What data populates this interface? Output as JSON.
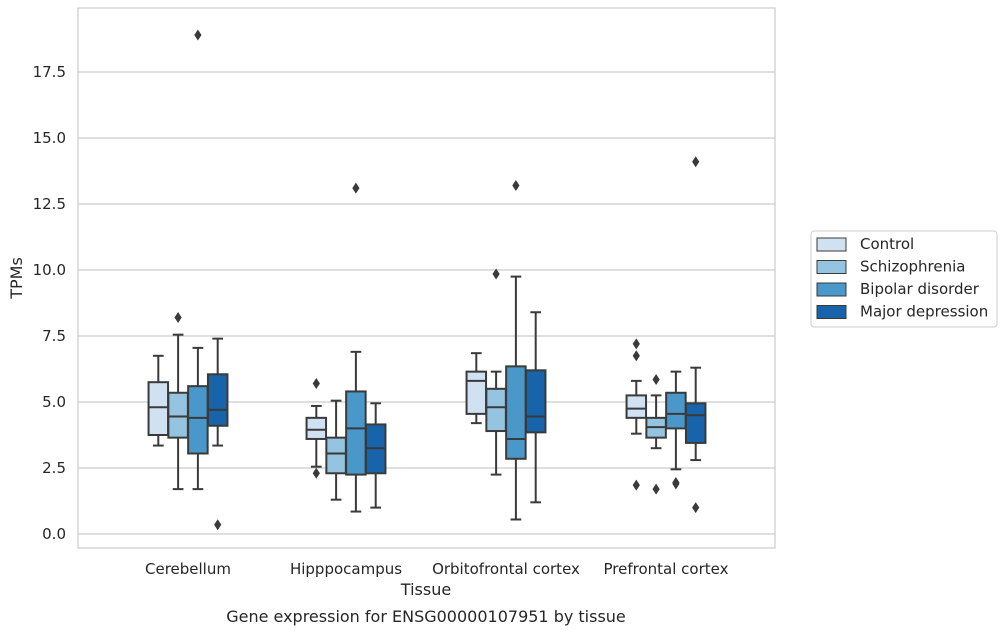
{
  "chart_data": {
    "type": "boxplot",
    "title": "Gene expression for ENSG00000107951 by tissue",
    "xlabel": "Tissue",
    "ylabel": "TPMs",
    "ylim": [
      -0.5,
      19.8
    ],
    "yticks": [
      "0.0",
      "2.5",
      "5.0",
      "7.5",
      "10.0",
      "12.5",
      "15.0",
      "17.5"
    ],
    "ytick_values": [
      0,
      2.5,
      5,
      7.5,
      10,
      12.5,
      15,
      17.5
    ],
    "grid": true,
    "legend_placement": "right",
    "categories": [
      "Cerebellum",
      "Hipppocampus",
      "Orbitofrontal cortex",
      "Prefrontal cortex"
    ],
    "series": [
      {
        "name": "Control",
        "color": "#d0e1f2",
        "boxes": [
          {
            "whislo": 3.35,
            "q1": 3.75,
            "med": 4.8,
            "q3": 5.75,
            "whishi": 6.75,
            "fliers": []
          },
          {
            "whislo": 2.55,
            "q1": 3.6,
            "med": 3.95,
            "q3": 4.4,
            "whishi": 4.85,
            "fliers": [
              5.7,
              2.3
            ]
          },
          {
            "whislo": 4.2,
            "q1": 4.55,
            "med": 5.8,
            "q3": 6.15,
            "whishi": 6.85,
            "fliers": []
          },
          {
            "whislo": 3.8,
            "q1": 4.4,
            "med": 4.75,
            "q3": 5.25,
            "whishi": 5.8,
            "fliers": [
              7.2,
              6.75,
              1.85
            ]
          }
        ]
      },
      {
        "name": "Schizophrenia",
        "color": "#94c4df",
        "boxes": [
          {
            "whislo": 1.7,
            "q1": 3.65,
            "med": 4.45,
            "q3": 5.35,
            "whishi": 7.55,
            "fliers": [
              8.2
            ]
          },
          {
            "whislo": 1.3,
            "q1": 2.3,
            "med": 3.05,
            "q3": 3.65,
            "whishi": 5.05,
            "fliers": []
          },
          {
            "whislo": 2.25,
            "q1": 3.9,
            "med": 4.8,
            "q3": 5.5,
            "whishi": 6.15,
            "fliers": [
              9.85
            ]
          },
          {
            "whislo": 3.25,
            "q1": 3.65,
            "med": 4.05,
            "q3": 4.4,
            "whishi": 5.25,
            "fliers": [
              5.85,
              1.7
            ]
          }
        ]
      },
      {
        "name": "Bipolar disorder",
        "color": "#4a98c9",
        "boxes": [
          {
            "whislo": 1.7,
            "q1": 3.05,
            "med": 4.4,
            "q3": 5.6,
            "whishi": 7.05,
            "fliers": [
              18.9
            ]
          },
          {
            "whislo": 0.85,
            "q1": 2.25,
            "med": 4.0,
            "q3": 5.4,
            "whishi": 6.9,
            "fliers": [
              13.1
            ]
          },
          {
            "whislo": 0.55,
            "q1": 2.85,
            "med": 3.6,
            "q3": 6.35,
            "whishi": 9.75,
            "fliers": [
              13.2
            ]
          },
          {
            "whislo": 2.45,
            "q1": 4.0,
            "med": 4.55,
            "q3": 5.35,
            "whishi": 6.15,
            "fliers": [
              1.95,
              1.9
            ]
          }
        ]
      },
      {
        "name": "Major depression",
        "color": "#1764ab",
        "boxes": [
          {
            "whislo": 3.35,
            "q1": 4.1,
            "med": 4.7,
            "q3": 6.05,
            "whishi": 7.4,
            "fliers": [
              0.35
            ]
          },
          {
            "whislo": 1.0,
            "q1": 2.3,
            "med": 3.25,
            "q3": 4.15,
            "whishi": 4.95,
            "fliers": []
          },
          {
            "whislo": 1.2,
            "q1": 3.85,
            "med": 4.45,
            "q3": 6.2,
            "whishi": 8.4,
            "fliers": []
          },
          {
            "whislo": 2.8,
            "q1": 3.45,
            "med": 4.5,
            "q3": 4.95,
            "whishi": 6.3,
            "fliers": [
              14.1,
              1.0
            ]
          }
        ]
      }
    ]
  }
}
